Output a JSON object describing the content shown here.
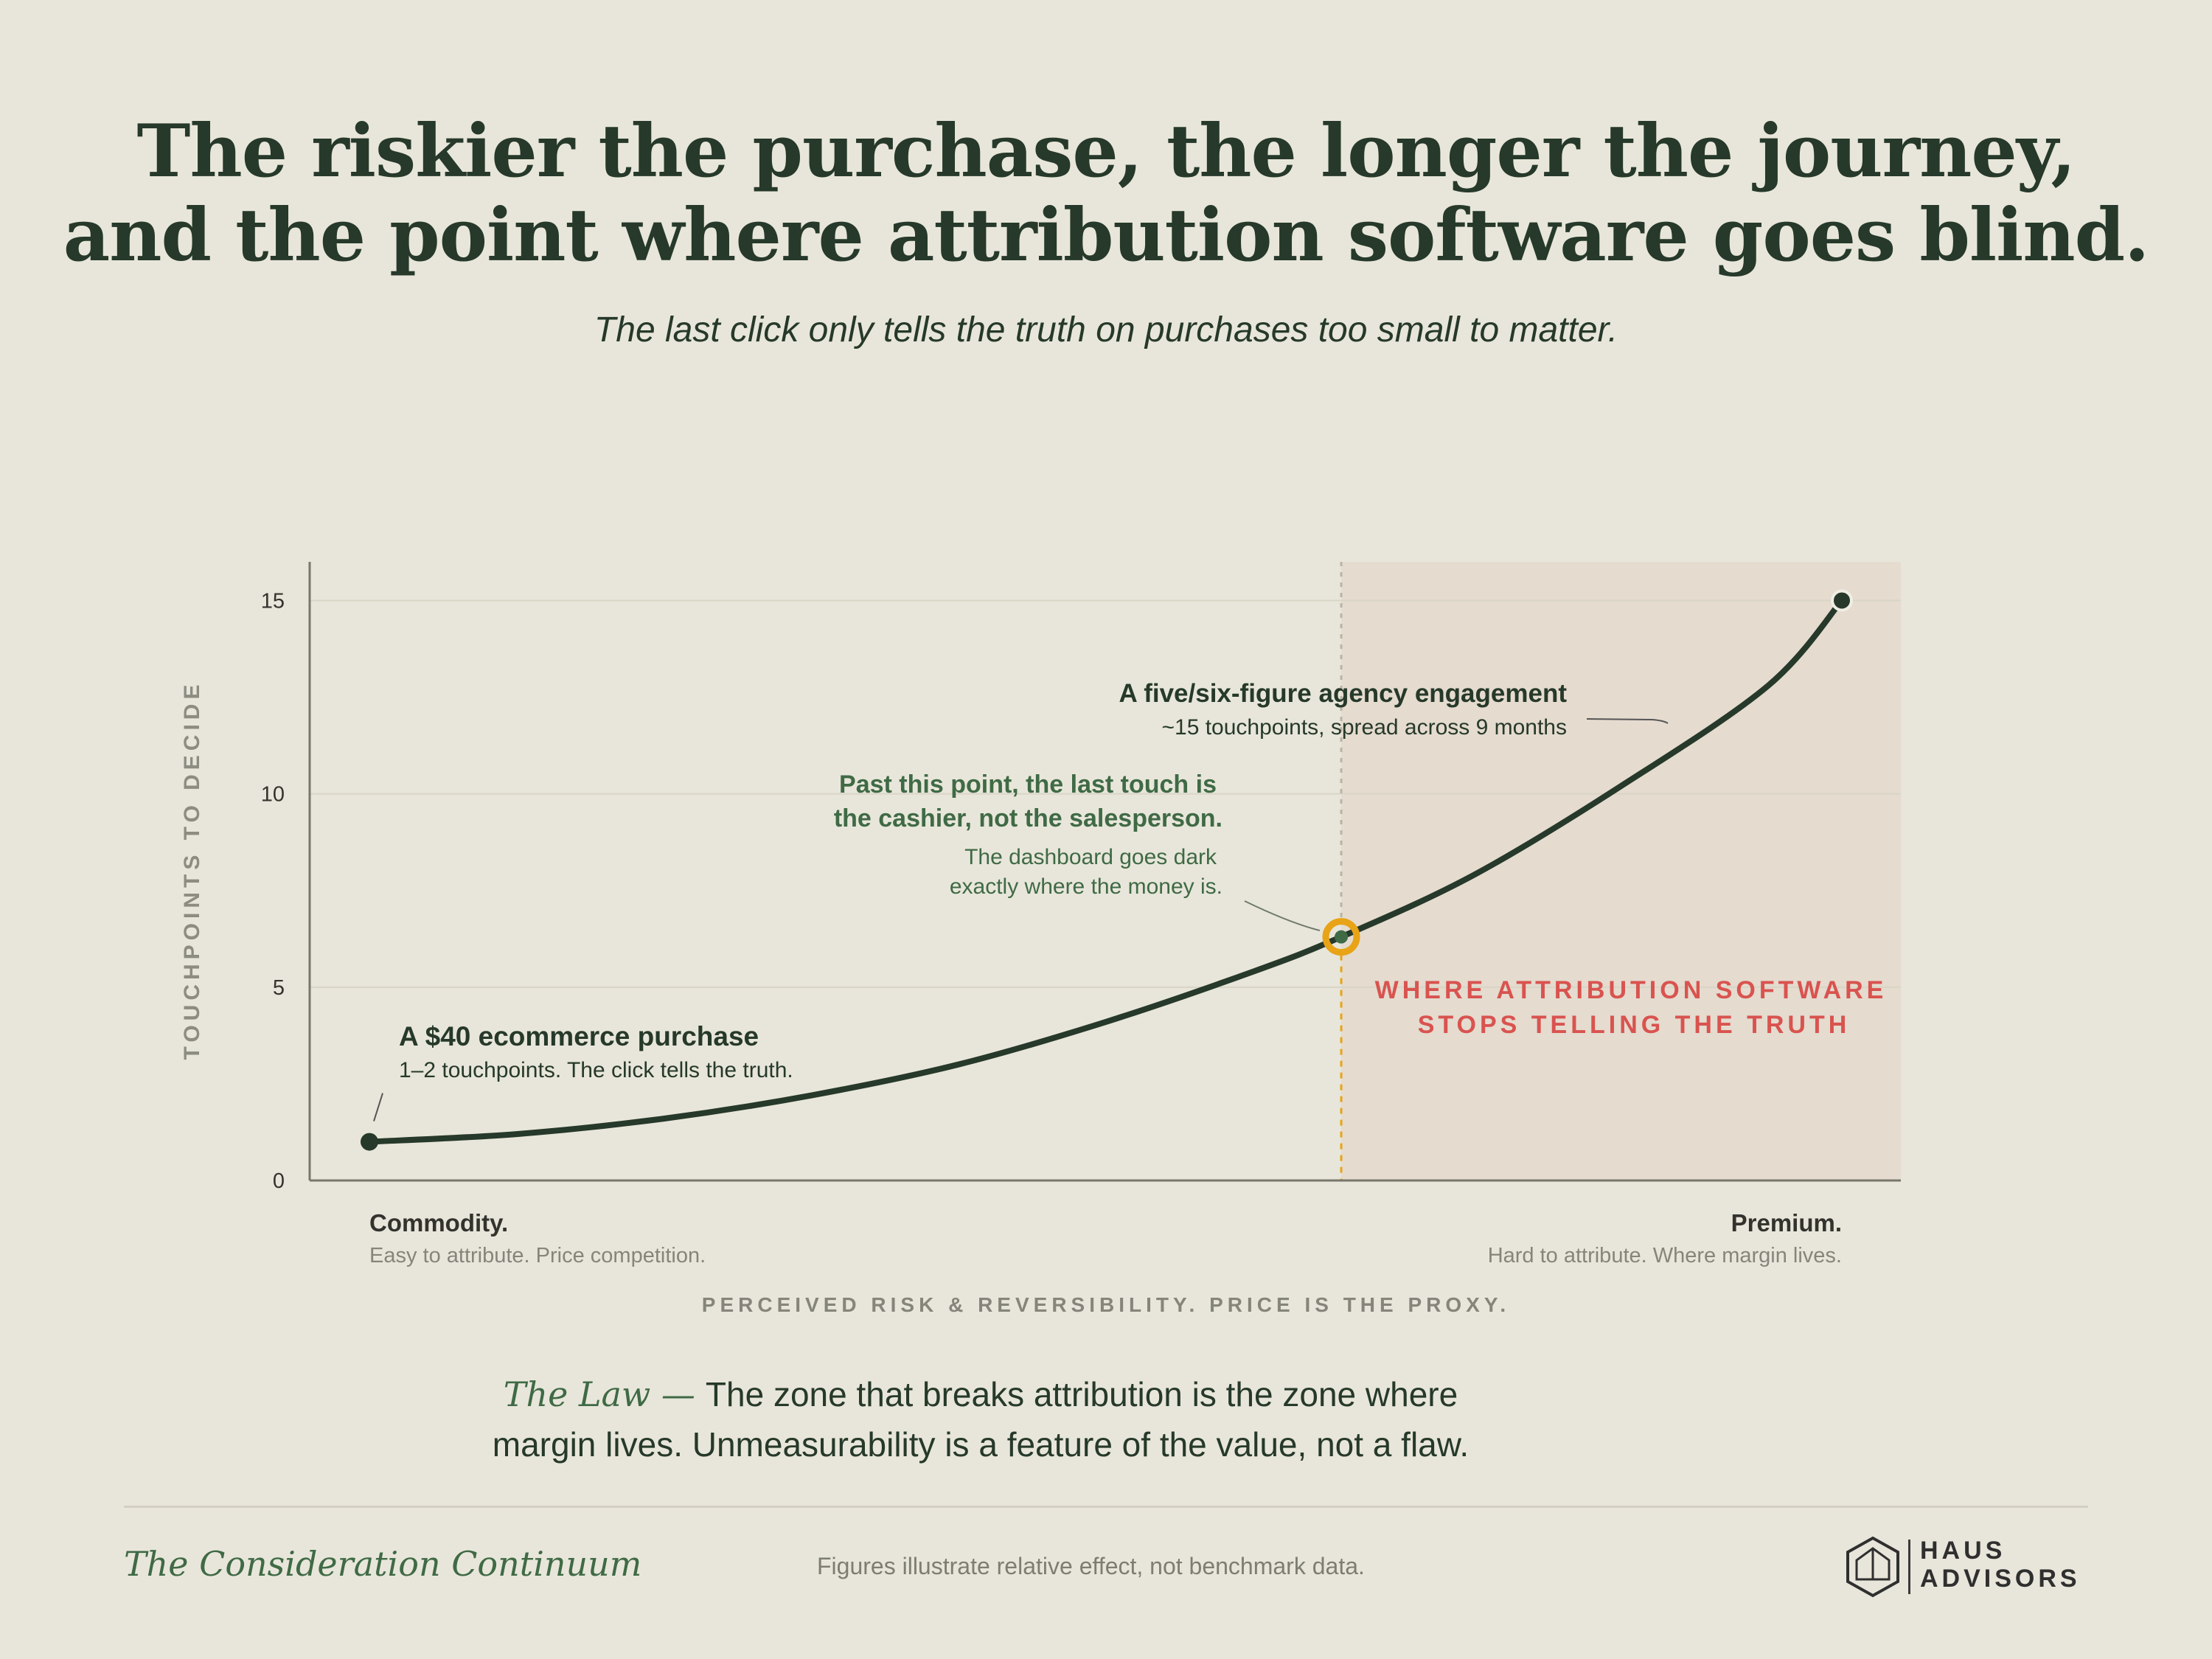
{
  "header": {
    "title_line_1": "The riskier the purchase, the longer the journey,",
    "title_line_2": "and the point where attribution software goes blind.",
    "subtitle": "The last click only tells the truth on purchases too small to matter."
  },
  "chart_data": {
    "type": "line",
    "ylabel": "TOUCHPOINTS TO DECIDE",
    "xlabel": "PERCEIVED RISK & REVERSIBILITY. PRICE IS THE PROXY.",
    "ylim": [
      0,
      16
    ],
    "yticks": [
      0,
      5,
      10,
      15
    ],
    "grid": true,
    "x_endpoints": {
      "left": {
        "label": "Commodity.",
        "sub": "Easy to attribute. Price competition."
      },
      "right": {
        "label": "Premium.",
        "sub": "Hard to attribute. Where margin lives."
      }
    },
    "series": [
      {
        "values": [
          {
            "x": 0.0,
            "y": 1.0
          },
          {
            "x": 0.1,
            "y": 1.2
          },
          {
            "x": 0.2,
            "y": 1.6
          },
          {
            "x": 0.3,
            "y": 2.2
          },
          {
            "x": 0.4,
            "y": 3.0
          },
          {
            "x": 0.5,
            "y": 4.1
          },
          {
            "x": 0.6,
            "y": 5.4
          },
          {
            "x": 0.66,
            "y": 6.3
          },
          {
            "x": 0.75,
            "y": 7.9
          },
          {
            "x": 0.85,
            "y": 10.2
          },
          {
            "x": 0.95,
            "y": 12.8
          },
          {
            "x": 1.0,
            "y": 15.0
          }
        ]
      }
    ],
    "threshold": {
      "x": 0.66,
      "y": 6.3,
      "zone_label_line_1": "WHERE ATTRIBUTION SOFTWARE",
      "zone_label_line_2": "STOPS TELLING THE TRUTH"
    },
    "annotations": {
      "commodity": {
        "title": "A $40 ecommerce purchase",
        "note": "1–2 touchpoints. The click tells the truth."
      },
      "threshold": {
        "title_line_1": "Past this point, the last touch is",
        "title_line_2": "the cashier, not the salesperson.",
        "note_line_1": "The dashboard goes dark",
        "note_line_2": "exactly where the money is."
      },
      "premium": {
        "title": "A five/six-figure agency engagement",
        "note": "~15 touchpoints, spread across 9 months"
      }
    },
    "colors": {
      "line": "#26392a",
      "zone": "#e5dbcf",
      "threshold": "#e8a317",
      "zone_text": "#d9534f",
      "annotation_green": "#3f6a45"
    }
  },
  "law": {
    "label": "The Law —",
    "line_1": "The zone that breaks attribution is the zone where",
    "line_2": "margin lives. Unmeasurability is a feature of the value, not a flaw."
  },
  "footer": {
    "title": "The Consideration Continuum",
    "note": "Figures illustrate relative effect, not benchmark data.",
    "logo_line_1": "HAUS",
    "logo_line_2": "ADVISORS",
    "logo_icon": "house-hexagon-icon"
  }
}
